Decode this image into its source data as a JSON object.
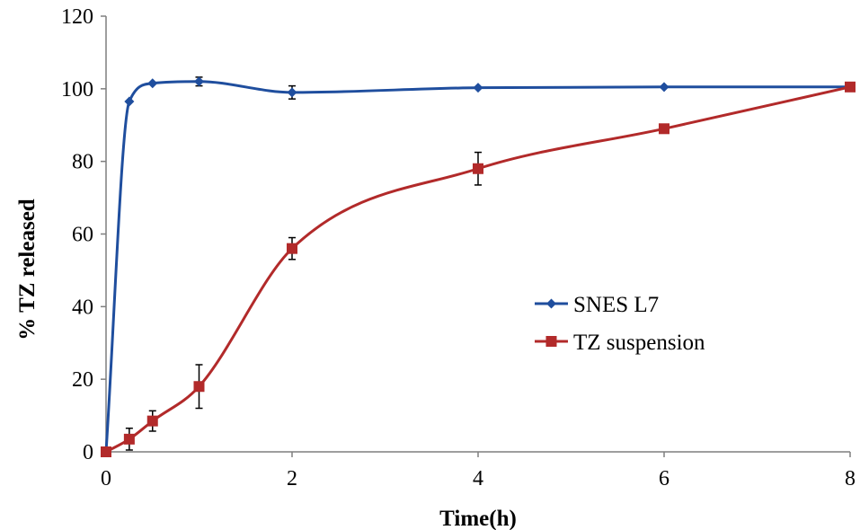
{
  "chart_data": {
    "type": "line",
    "title": "",
    "xlabel": "Time(h)",
    "ylabel": "% TZ released",
    "xlim": [
      0,
      8
    ],
    "ylim": [
      0,
      120
    ],
    "xticks": [
      0,
      2,
      4,
      6,
      8
    ],
    "yticks": [
      0,
      20,
      40,
      60,
      80,
      100,
      120
    ],
    "grid": false,
    "legend_position": "center-right",
    "series": [
      {
        "name": "SNES L7",
        "marker": "diamond",
        "color": "#1F4E9E",
        "x": [
          0,
          0.25,
          0.5,
          1,
          2,
          4,
          6,
          8
        ],
        "y": [
          0,
          96.5,
          101.5,
          102,
          99,
          100.3,
          100.5,
          100.5
        ],
        "err": [
          0,
          0.8,
          0.6,
          1.2,
          1.8,
          0.6,
          0.5,
          0.5
        ]
      },
      {
        "name": "TZ suspension",
        "marker": "square",
        "color": "#B22A2A",
        "x": [
          0,
          0.25,
          0.5,
          1,
          2,
          4,
          6,
          8
        ],
        "y": [
          0,
          3.5,
          8.5,
          18,
          56,
          78,
          89,
          100.5
        ],
        "err": [
          1,
          3,
          2.8,
          6,
          3,
          4.5,
          0.5,
          0.5
        ]
      }
    ]
  }
}
